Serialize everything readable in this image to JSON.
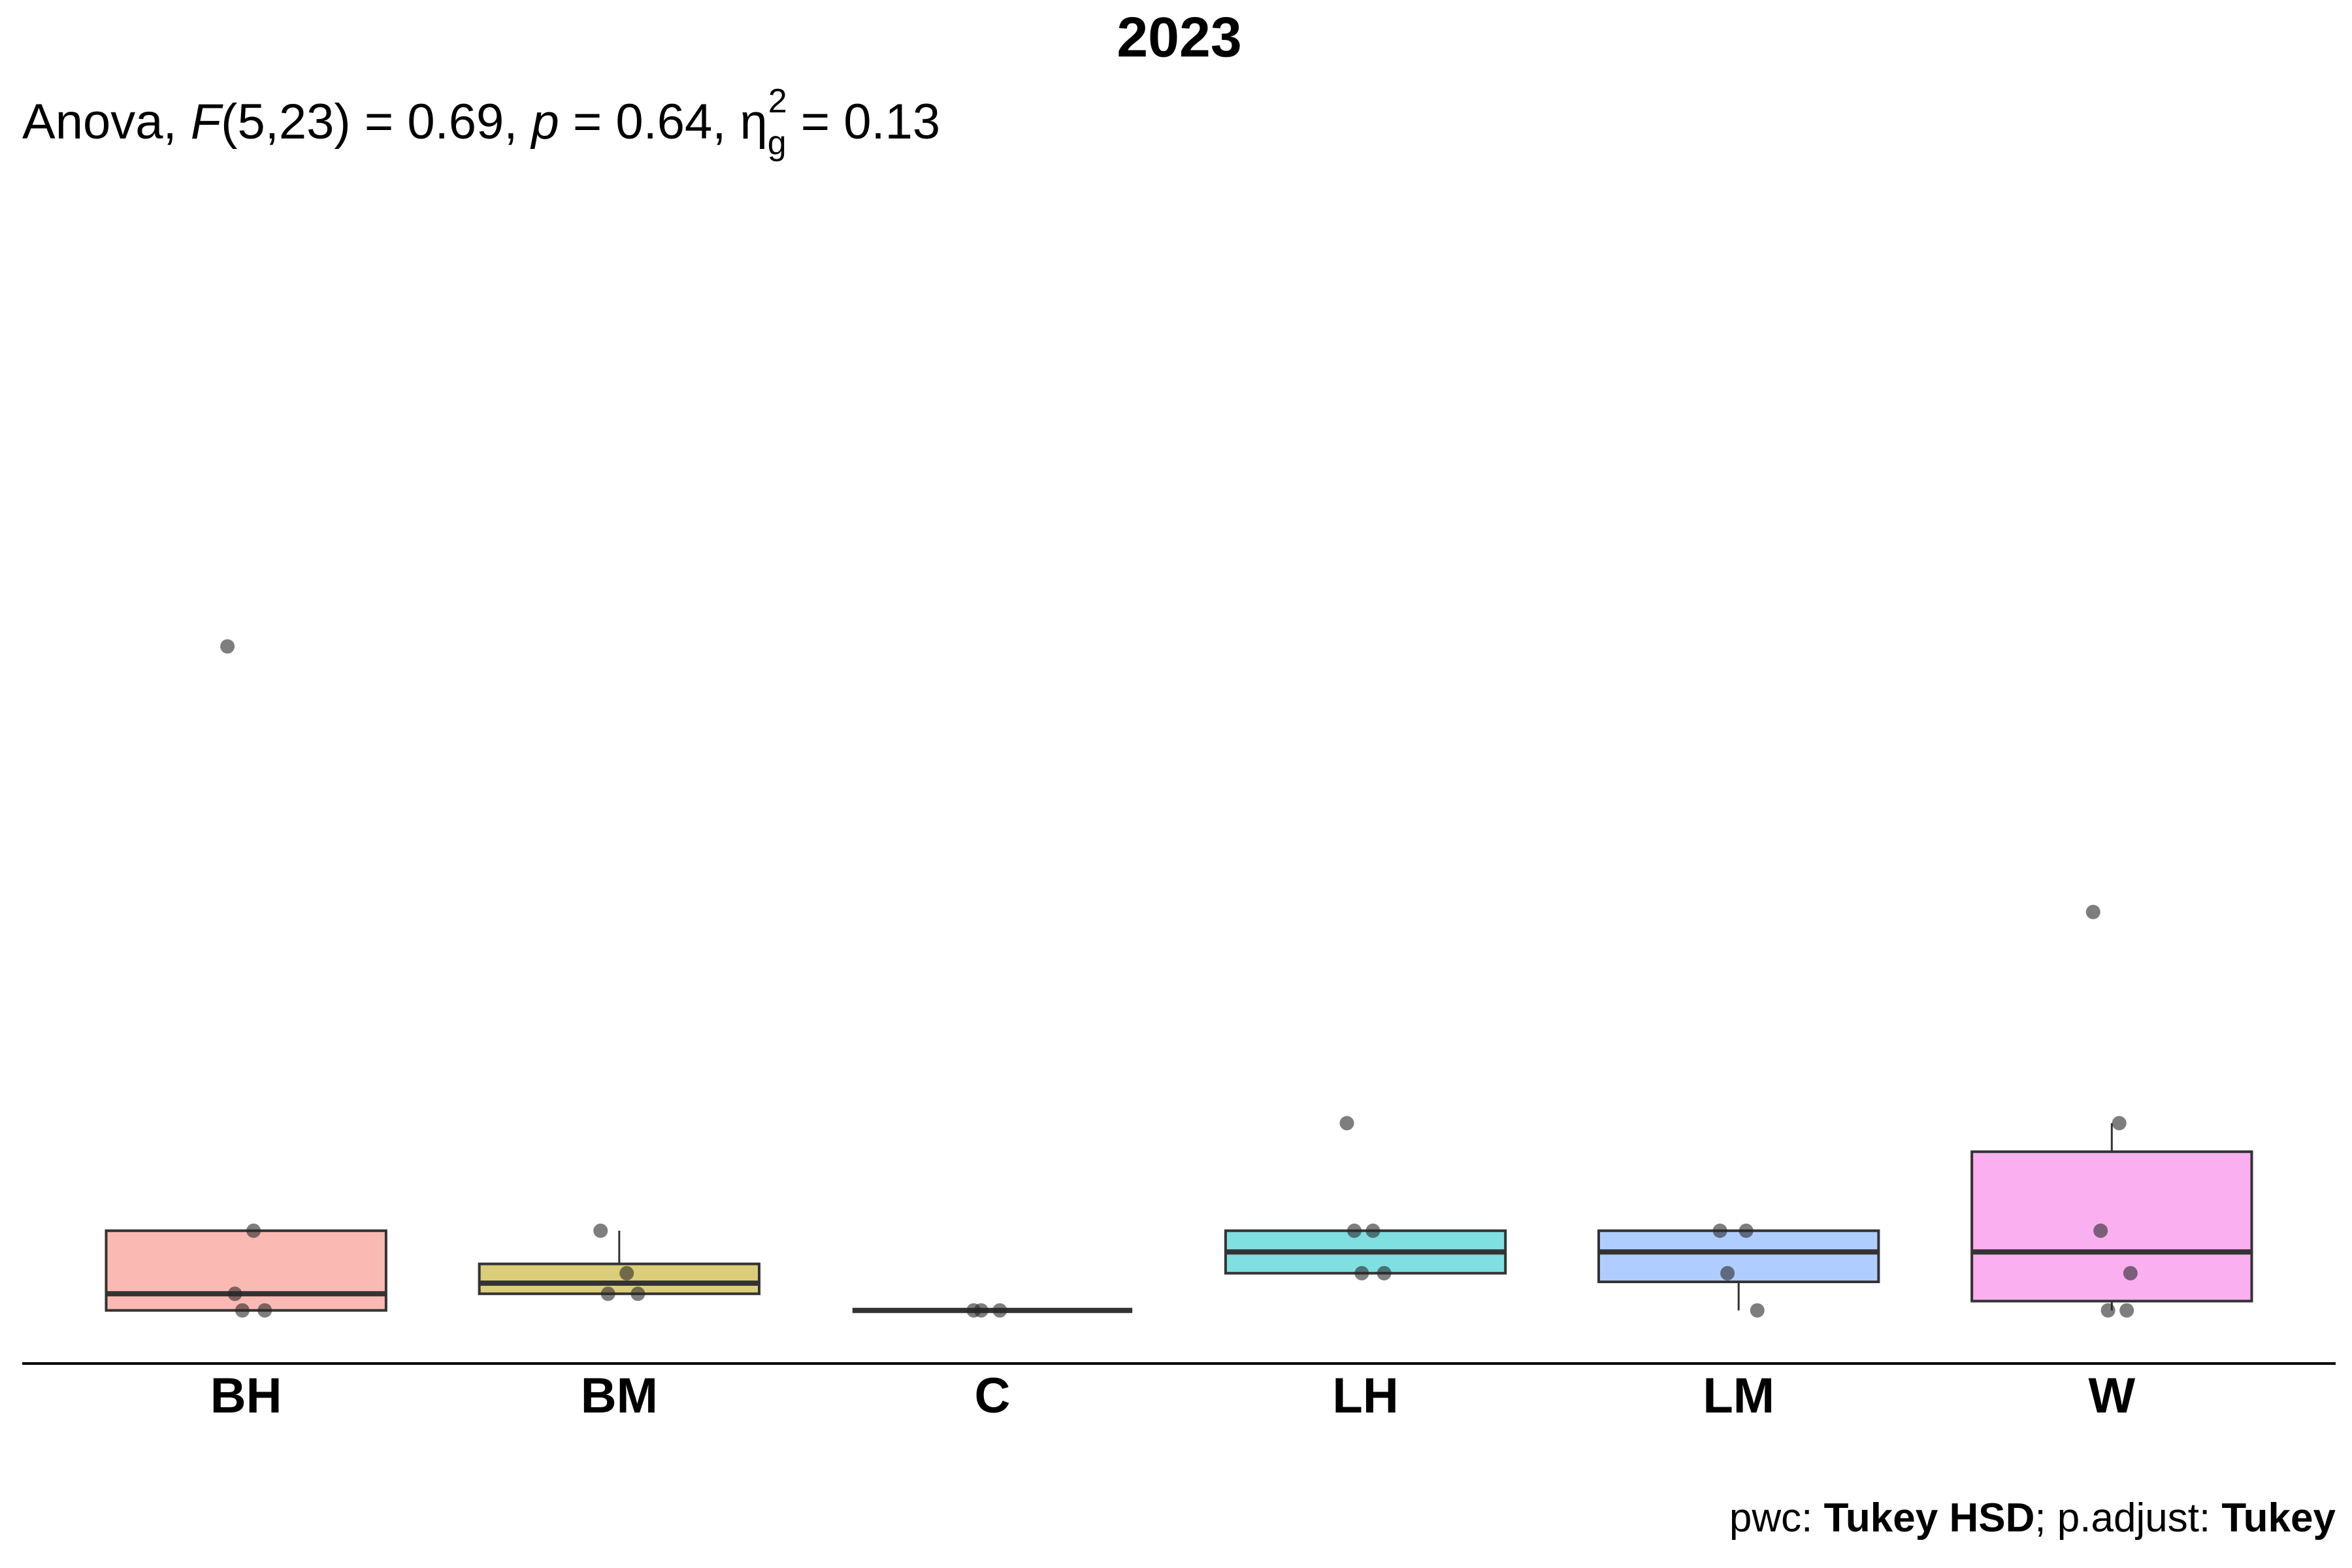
{
  "chart_data": {
    "type": "box",
    "title": "2023",
    "subtitle": {
      "parts": [
        "Anova, ",
        "F",
        "(5,23) = 0.69, ",
        "p",
        " = 0.64, ",
        "η",
        "g",
        "2",
        " = 0.13"
      ]
    },
    "caption": {
      "parts": [
        "pwc: ",
        "Tukey HSD",
        "; p.adjust: ",
        "Tukey"
      ]
    },
    "categories": [
      "BH",
      "BM",
      "C",
      "LH",
      "LM",
      "W"
    ],
    "colors": [
      "#fbb9b4",
      "#dbcd7a",
      "#7fdc9b",
      "#7fdfe1",
      "#b0cdff",
      "#faaff1"
    ],
    "boxes": [
      {
        "q1": 0,
        "median": 0.25,
        "q3": 1.2,
        "whisker_low": 0,
        "whisker_high": 1.2
      },
      {
        "q1": 0.25,
        "median": 0.41,
        "q3": 0.7,
        "whisker_low": 0.25,
        "whisker_high": 1.2
      },
      {
        "q1": 0,
        "median": 0,
        "q3": 0,
        "whisker_low": 0,
        "whisker_high": 0
      },
      {
        "q1": 0.56,
        "median": 0.88,
        "q3": 1.2,
        "whisker_low": 0.56,
        "whisker_high": 1.2
      },
      {
        "q1": 0.43,
        "median": 0.88,
        "q3": 1.2,
        "whisker_low": 0,
        "whisker_high": 1.2
      },
      {
        "q1": 0.14,
        "median": 0.88,
        "q3": 2.39,
        "whisker_low": 0,
        "whisker_high": 2.82
      }
    ],
    "points": [
      [
        10,
        1.2,
        0.25,
        0,
        0
      ],
      [
        1.2,
        0.56,
        0.25,
        0.25
      ],
      [
        0,
        0,
        0
      ],
      [
        2.82,
        1.2,
        1.2,
        0.56,
        0.56
      ],
      [
        1.2,
        1.2,
        0.56,
        0
      ],
      [
        6.0,
        2.82,
        1.2,
        0.56,
        0,
        0
      ]
    ],
    "ylim": [
      -0.8,
      17
    ]
  }
}
